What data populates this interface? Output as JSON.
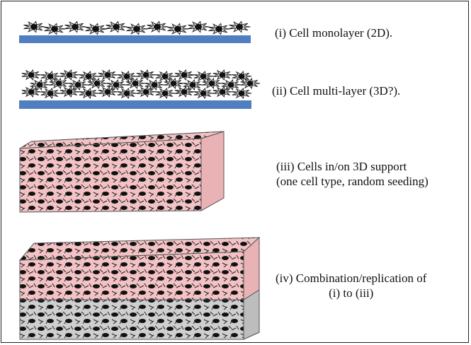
{
  "labels": {
    "monolayer": "(i) Cell monolayer (2D).",
    "multilayer": "(ii) Cell multi-layer (3D?).",
    "support_line1": "(iii) Cells in/on 3D support",
    "support_line2": "(one cell type, random seeding)",
    "combination_line1": "(iv) Combination/replication of",
    "combination_line2": "(i) to (iii)"
  },
  "colors": {
    "substrate": "#4f7fc0",
    "scaffold_pink": "#f2c2c4",
    "scaffold_gray": "#cfcfcf",
    "cell": "#111111"
  }
}
